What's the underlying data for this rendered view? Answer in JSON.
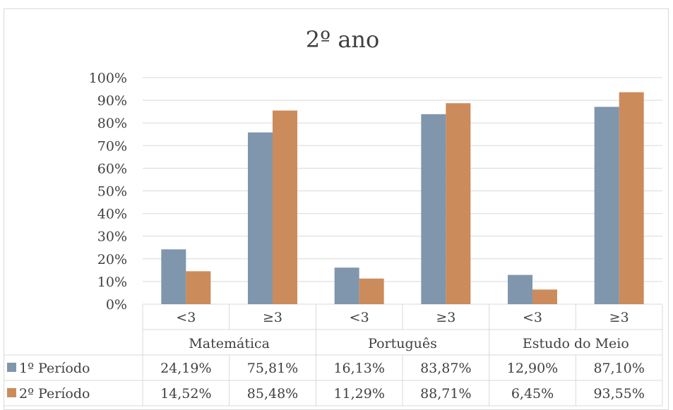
{
  "chart_data": {
    "type": "bar",
    "title": "2º ano",
    "groups": [
      "Matemática",
      "Português",
      "Estudo do Meio"
    ],
    "subcategories": [
      "<3",
      "≥3"
    ],
    "categories": [
      "Matemática <3",
      "Matemática ≥3",
      "Português <3",
      "Português ≥3",
      "Estudo do Meio <3",
      "Estudo do Meio ≥3"
    ],
    "ylim": [
      0,
      100
    ],
    "yticks": [
      "0%",
      "10%",
      "20%",
      "30%",
      "40%",
      "50%",
      "60%",
      "70%",
      "80%",
      "90%",
      "100%"
    ],
    "grid": true,
    "legend": "data-table",
    "series": [
      {
        "name": "1º Período",
        "color": "#7f96ad",
        "values": [
          24.19,
          75.81,
          16.13,
          83.87,
          12.9,
          87.1
        ],
        "labels": [
          "24,19%",
          "75,81%",
          "16,13%",
          "83,87%",
          "12,90%",
          "87,10%"
        ]
      },
      {
        "name": "2º  Período",
        "color": "#cc8b5a",
        "values": [
          14.52,
          85.48,
          11.29,
          88.71,
          6.45,
          93.55
        ],
        "labels": [
          "14,52%",
          "85,48%",
          "11,29%",
          "88,71%",
          "6,45%",
          "93,55%"
        ]
      }
    ]
  }
}
